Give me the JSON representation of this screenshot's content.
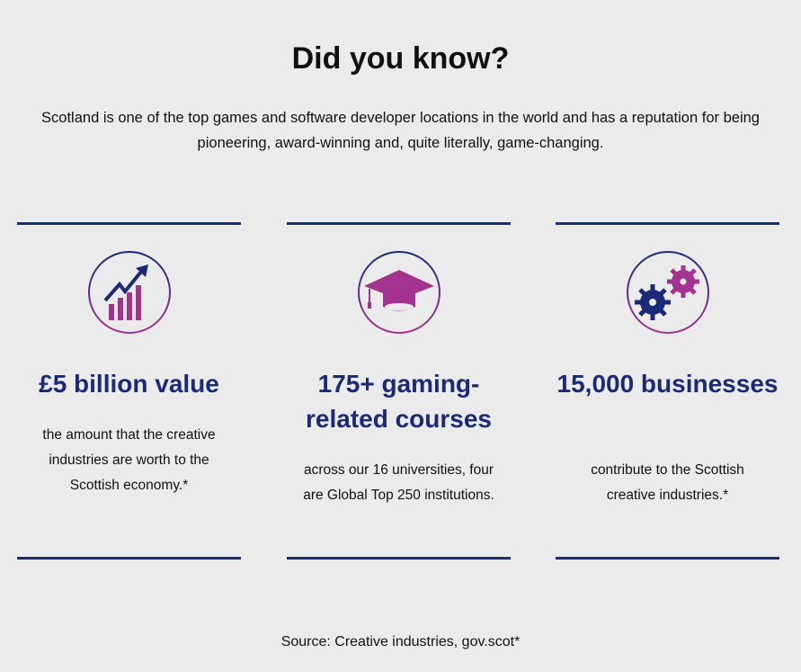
{
  "title": "Did you know?",
  "intro": "Scotland is one of the top games and software developer locations in the world and has a reputation for being pioneering, award-winning and, quite literally, game-changing.",
  "colors": {
    "navy": "#1b2a78",
    "magenta": "#a3338f",
    "background": "#ebebeb"
  },
  "stats": [
    {
      "icon": "growth-chart-icon",
      "heading": "£5 billion value",
      "description": "the amount that the creative industries are worth to the Scottish economy.*"
    },
    {
      "icon": "graduation-cap-icon",
      "heading": "175+ gaming-related courses",
      "description": "across our 16 universities, four are Global Top 250 institutions."
    },
    {
      "icon": "gears-icon",
      "heading": "15,000 businesses",
      "description": "contribute to the Scottish creative industries.*"
    }
  ],
  "source": "Source: Creative industries, gov.scot*"
}
